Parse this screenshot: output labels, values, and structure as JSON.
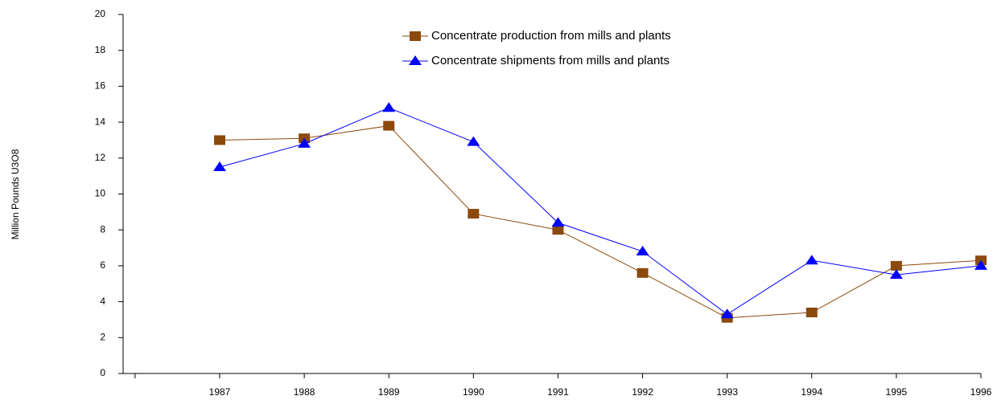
{
  "chart_data": {
    "type": "line",
    "y_label": "Million Pounds U3O8",
    "categories": [
      "1987",
      "1988",
      "1989",
      "1990",
      "1991",
      "1992",
      "1993",
      "1994",
      "1995",
      "1996"
    ],
    "series": [
      {
        "name": "Concentrate production from mills and plants",
        "color": "#8b4a0c",
        "marker": "square",
        "values": [
          13.0,
          13.1,
          13.8,
          8.9,
          8.0,
          5.6,
          3.1,
          3.4,
          6.0,
          6.3
        ]
      },
      {
        "name": "Concentrate shipments from mills and plants",
        "color": "#0000ff",
        "marker": "triangle",
        "values": [
          11.5,
          12.8,
          14.8,
          12.9,
          8.4,
          6.8,
          3.3,
          6.3,
          5.5,
          6.0
        ]
      }
    ],
    "ylim": [
      0,
      20
    ],
    "yticks": [
      0,
      2,
      4,
      6,
      8,
      10,
      12,
      14,
      16,
      18,
      20
    ],
    "grid": false
  }
}
